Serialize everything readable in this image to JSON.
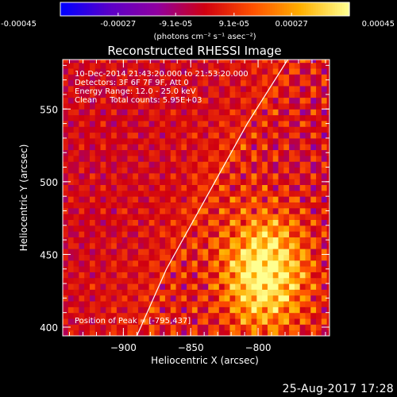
{
  "colorbar": {
    "tick_labels": [
      "-0.00045",
      "-0.00027",
      "-9.1e-05",
      "9.1e-05",
      "0.00027",
      "0.00045"
    ],
    "unit_label": "(photons cm⁻² s⁻¹ asec⁻²)"
  },
  "chart_data": {
    "type": "heatmap",
    "title": "Reconstructed RHESSI Image",
    "xlabel": "Heliocentric X (arcsec)",
    "ylabel": "Heliocentric Y (arcsec)",
    "xlim": [
      -945,
      -747
    ],
    "ylim": [
      394,
      584
    ],
    "x_ticks": [
      -900,
      -850,
      -800
    ],
    "y_ticks": [
      400,
      450,
      500,
      550
    ],
    "color_range": [
      -0.00045,
      0.00045
    ],
    "colormap": [
      "#0000ff",
      "#5a00c8",
      "#9000a0",
      "#d00010",
      "#ff5000",
      "#ffb000",
      "#ffff90"
    ],
    "annotations": [
      "10-Dec-2014 21:43:20.000 to 21:53:20.000",
      "Detectors: 3F 6F 7F 9F, Att 0",
      "Energy Range: 12.0 - 25.0 keV",
      "Clean     Total counts: 5.95E+03"
    ],
    "peak_label": "Position of Peak = [-795,437]",
    "peak": {
      "x": -795,
      "y": 437
    },
    "limb_line": [
      [
        -890,
        394
      ],
      [
        -868,
        440
      ],
      [
        -832,
        500
      ],
      [
        -808,
        540
      ],
      [
        -778,
        584
      ]
    ],
    "source_region": {
      "x": -795,
      "y": 437,
      "sigma_x": 22,
      "sigma_y": 28,
      "amplitude": 0.00045
    }
  },
  "footer": {
    "date": "25-Aug-2017 17:28"
  }
}
